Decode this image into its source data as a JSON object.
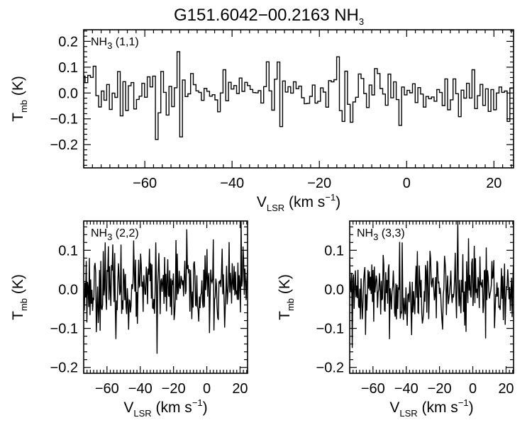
{
  "chart_data": [
    {
      "type": "line",
      "panel": "top",
      "title": "G151.6042−00.2163 NH",
      "title_sub": "3",
      "label": "NH",
      "label_sub": "3",
      "label_tail": " (1,1)",
      "xlabel": "V",
      "xlabel_sub": "LSR",
      "xlabel_tail": " (km s",
      "xlabel_sup": "−1",
      "xlabel_close": ")",
      "ylabel": "T",
      "ylabel_sub": "mb",
      "ylabel_tail": " (K)",
      "xlim": [
        -74,
        24.5
      ],
      "ylim": [
        -0.29,
        0.245
      ],
      "xticks": [
        -60,
        -40,
        -20,
        0,
        20
      ],
      "xtick_labels": [
        "−60",
        "−40",
        "−20",
        "0",
        "20"
      ],
      "yticks": [
        -0.2,
        -0.1,
        0.0,
        0.1,
        0.2
      ],
      "ytick_labels": [
        "−0.2",
        "−0.1",
        "0.0",
        "0.1",
        "0.2"
      ],
      "channel_width": 0.62,
      "noise_rms": 0.045,
      "spikes": [
        [
          -57.0,
          -0.18
        ],
        [
          -52.5,
          0.16
        ],
        [
          -51.5,
          -0.17
        ],
        [
          -41.5,
          0.09
        ],
        [
          -29.5,
          0.12
        ],
        [
          -29.0,
          -0.13
        ],
        [
          -14.5,
          -0.11
        ],
        [
          15.0,
          0.09
        ],
        [
          23.5,
          -0.11
        ]
      ],
      "style": "histogram"
    },
    {
      "type": "line",
      "panel": "bottom-left",
      "label": "NH",
      "label_sub": "3",
      "label_tail": " (2,2)",
      "xlabel": "V",
      "xlabel_sub": "LSR",
      "xlabel_tail": " (km s",
      "xlabel_sup": "−1",
      "xlabel_close": ")",
      "ylabel": "T",
      "ylabel_sub": "mb",
      "ylabel_tail": " (K)",
      "xlim": [
        -74,
        24.5
      ],
      "ylim": [
        -0.215,
        0.175
      ],
      "xticks": [
        -60,
        -40,
        -20,
        0,
        20
      ],
      "xtick_labels": [
        "−60",
        "−40",
        "−20",
        "0",
        "20"
      ],
      "yticks": [
        -0.2,
        -0.1,
        0.0,
        0.1
      ],
      "ytick_labels": [
        "−0.2",
        "−0.1",
        "0.0",
        "0.1"
      ],
      "channel_width": 0.38,
      "noise_rms": 0.05,
      "spikes": [
        [
          -30.0,
          -0.165
        ],
        [
          -30.5,
          0.12
        ],
        [
          20.5,
          0.175
        ],
        [
          -61.0,
          0.12
        ]
      ],
      "style": "line"
    },
    {
      "type": "line",
      "panel": "bottom-right",
      "label": "NH",
      "label_sub": "3",
      "label_tail": " (3,3)",
      "xlabel": "V",
      "xlabel_sub": "LSR",
      "xlabel_tail": " (km s",
      "xlabel_sup": "−1",
      "xlabel_close": ")",
      "ylabel": "T",
      "ylabel_sub": "mb",
      "ylabel_tail": " (K)",
      "xlim": [
        -74,
        24.5
      ],
      "ylim": [
        -0.215,
        0.175
      ],
      "xticks": [
        -60,
        -40,
        -20,
        0,
        20
      ],
      "xtick_labels": [
        "−60",
        "−40",
        "−20",
        "0",
        "20"
      ],
      "yticks": [
        -0.2,
        -0.1,
        0.0,
        0.1
      ],
      "ytick_labels": [
        "−0.2",
        "−0.1",
        "0.0",
        "0.1"
      ],
      "channel_width": 0.38,
      "noise_rms": 0.05,
      "spikes": [
        [
          -9.0,
          0.175
        ],
        [
          -72.5,
          -0.15
        ],
        [
          -42.5,
          0.12
        ]
      ],
      "style": "line"
    }
  ]
}
